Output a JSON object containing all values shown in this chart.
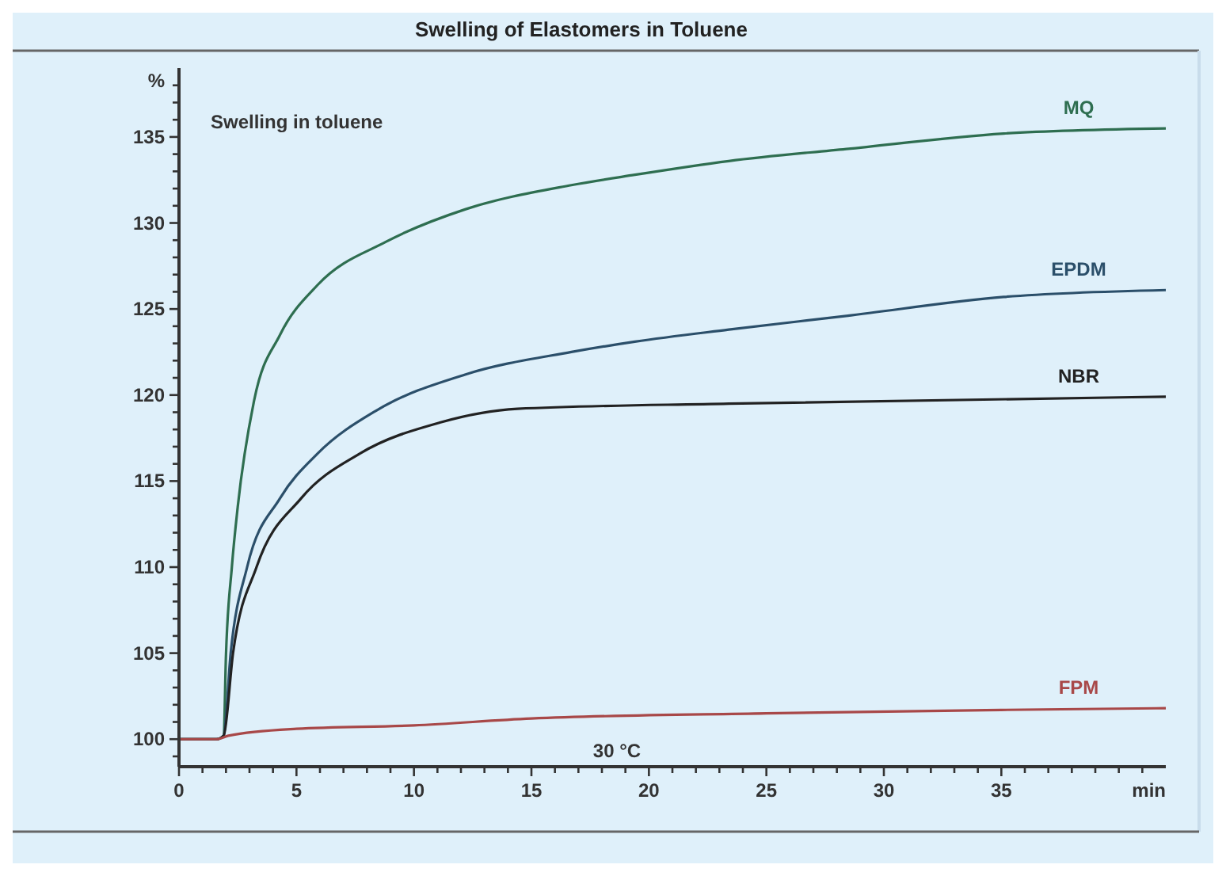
{
  "chart_data": {
    "type": "line",
    "title": "Swelling of Elastomers in Toluene",
    "xlabel": "min",
    "ylabel": "%",
    "xlim": [
      0,
      42
    ],
    "ylim": [
      98.4,
      139
    ],
    "xticks": [
      0,
      {
        "value": 1,
        "label": null
      },
      {
        "value": 2,
        "label": null
      },
      {
        "value": 3,
        "label": null
      },
      {
        "value": 4,
        "label": null
      },
      5,
      {
        "value": 6,
        "label": null
      },
      {
        "value": 7,
        "label": null
      },
      {
        "value": 8,
        "label": null
      },
      {
        "value": 9,
        "label": null
      },
      10,
      {
        "value": 11,
        "label": null
      },
      {
        "value": 12,
        "label": null
      },
      {
        "value": 13,
        "label": null
      },
      {
        "value": 14,
        "label": null
      },
      15,
      {
        "value": 16,
        "label": null
      },
      {
        "value": 17,
        "label": null
      },
      {
        "value": 18,
        "label": null
      },
      {
        "value": 19,
        "label": null
      },
      20,
      {
        "value": 21,
        "label": null
      },
      {
        "value": 22,
        "label": null
      },
      {
        "value": 23,
        "label": null
      },
      {
        "value": 24,
        "label": null
      },
      25,
      {
        "value": 26,
        "label": null
      },
      {
        "value": 27,
        "label": null
      },
      {
        "value": 28,
        "label": null
      },
      {
        "value": 29,
        "label": null
      },
      30,
      {
        "value": 31,
        "label": null
      },
      {
        "value": 32,
        "label": null
      },
      {
        "value": 33,
        "label": null
      },
      {
        "value": 34,
        "label": null
      },
      35,
      {
        "value": 36,
        "label": null
      },
      {
        "value": 37,
        "label": null
      },
      {
        "value": 38,
        "label": null
      },
      {
        "value": 39,
        "label": null
      },
      {
        "value": 40,
        "label": null
      },
      {
        "value": 41,
        "label": null
      }
    ],
    "yticks": [
      {
        "value": 99,
        "label": null
      },
      100,
      {
        "value": 101,
        "label": null
      },
      {
        "value": 102,
        "label": null
      },
      {
        "value": 103,
        "label": null
      },
      {
        "value": 104,
        "label": null
      },
      105,
      {
        "value": 106,
        "label": null
      },
      {
        "value": 107,
        "label": null
      },
      {
        "value": 108,
        "label": null
      },
      {
        "value": 109,
        "label": null
      },
      110,
      {
        "value": 111,
        "label": null
      },
      {
        "value": 112,
        "label": null
      },
      {
        "value": 113,
        "label": null
      },
      {
        "value": 114,
        "label": null
      },
      115,
      {
        "value": 116,
        "label": null
      },
      {
        "value": 117,
        "label": null
      },
      {
        "value": 118,
        "label": null
      },
      {
        "value": 119,
        "label": null
      },
      120,
      {
        "value": 121,
        "label": null
      },
      {
        "value": 122,
        "label": null
      },
      {
        "value": 123,
        "label": null
      },
      {
        "value": 124,
        "label": null
      },
      125,
      {
        "value": 126,
        "label": null
      },
      {
        "value": 127,
        "label": null
      },
      {
        "value": 128,
        "label": null
      },
      {
        "value": 129,
        "label": null
      },
      130,
      {
        "value": 131,
        "label": null
      },
      {
        "value": 132,
        "label": null
      },
      {
        "value": 133,
        "label": null
      },
      {
        "value": 134,
        "label": null
      },
      135,
      {
        "value": 136,
        "label": null
      },
      {
        "value": 137,
        "label": null
      },
      {
        "value": 138,
        "label": null
      }
    ],
    "grid": false,
    "marker": "none",
    "line_style": "solid",
    "annotations": [
      "Swelling in toluene",
      "30 °C"
    ],
    "series": [
      {
        "name": "MQ",
        "color": "#2e6e50",
        "x": [
          0,
          1.6,
          1.9,
          2.0,
          2.25,
          2.5,
          3.2,
          4.3,
          5.9,
          8.8,
          12.2,
          16.7,
          19.4,
          23.4,
          28.4,
          35.1,
          42
        ],
        "values": [
          100,
          100,
          100.2,
          104.9,
          110,
          113.5,
          119.7,
          123.5,
          126.4,
          128.9,
          130.8,
          132.2,
          132.8,
          133.6,
          134.3,
          135.2,
          135.5
        ]
      },
      {
        "name": "EPDM",
        "color": "#2b4f6a",
        "x": [
          0,
          1.6,
          1.9,
          2.2,
          2.9,
          4.3,
          5.9,
          8.4,
          12.2,
          16.7,
          19.4,
          23.4,
          28.4,
          35.1,
          42
        ],
        "values": [
          100,
          100,
          100.2,
          105,
          110,
          114,
          116.6,
          119.1,
          121.2,
          122.5,
          123.1,
          123.8,
          124.6,
          125.7,
          126.1
        ]
      },
      {
        "name": "NBR",
        "color": "#222222",
        "x": [
          0,
          1.6,
          1.9,
          2.3,
          3.3,
          5.2,
          7.7,
          11.1,
          14.4,
          23.4,
          42
        ],
        "values": [
          100,
          100,
          100.2,
          105,
          110,
          114,
          116.6,
          118.4,
          119.2,
          119.5,
          119.9
        ]
      },
      {
        "name": "FPM",
        "color": "#a84848",
        "x": [
          0,
          1.6,
          2.1,
          5,
          10,
          15,
          25,
          35,
          42
        ],
        "values": [
          100,
          100,
          100.2,
          100.6,
          100.8,
          101.2,
          101.5,
          101.7,
          101.8
        ]
      }
    ]
  }
}
